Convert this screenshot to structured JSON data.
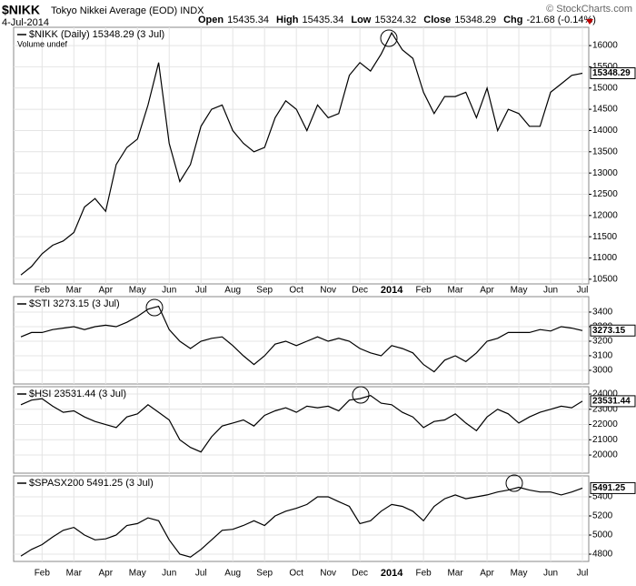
{
  "header": {
    "symbol": "$NIKK",
    "name": "Tokyo Nikkei Average (EOD) INDX",
    "copyright": "© StockCharts.com",
    "date": "4-Jul-2014",
    "quote": [
      {
        "label": "Open",
        "value": "15435.34"
      },
      {
        "label": "High",
        "value": "15435.34"
      },
      {
        "label": "Low",
        "value": "15324.32"
      },
      {
        "label": "Close",
        "value": "15348.29"
      },
      {
        "label": "Chg",
        "value": "-21.68 (-0.14%)"
      }
    ]
  },
  "chart_data": [
    {
      "type": "line",
      "label": "$NIKK (Daily) 15348.29 (3 Jul)",
      "note": "Volume undef",
      "color": "#000000",
      "grid": true,
      "categories": [
        null,
        null,
        "Feb",
        null,
        null,
        "Mar",
        null,
        null,
        "Apr",
        null,
        null,
        "May",
        null,
        null,
        "Jun",
        null,
        null,
        "Jul",
        null,
        null,
        "Aug",
        null,
        null,
        "Sep",
        null,
        null,
        "Oct",
        null,
        null,
        "Nov",
        null,
        null,
        "Dec",
        null,
        null,
        "2014",
        null,
        null,
        "Feb",
        null,
        null,
        "Mar",
        null,
        null,
        "Apr",
        null,
        null,
        "May",
        null,
        null,
        "Jun",
        null,
        null,
        "Jul"
      ],
      "values": [
        10600,
        10800,
        11100,
        11300,
        11400,
        11600,
        12200,
        12400,
        12100,
        13200,
        13600,
        13800,
        14600,
        15600,
        13700,
        12800,
        13200,
        14100,
        14500,
        14600,
        14000,
        13700,
        13500,
        13600,
        14300,
        14700,
        14500,
        14000,
        14600,
        14300,
        14400,
        15300,
        15600,
        15400,
        15800,
        16300,
        15900,
        15700,
        14900,
        14400,
        14800,
        14800,
        14900,
        14300,
        15000,
        14000,
        14500,
        14400,
        14100,
        14100,
        14900,
        15100,
        15300,
        15348.29
      ],
      "ylim": [
        10390,
        16430
      ],
      "yticks": [
        10500,
        11000,
        11500,
        12000,
        12500,
        13000,
        13500,
        14000,
        14500,
        15000,
        15500,
        16000
      ]
    },
    {
      "type": "line",
      "label": "$STI 3273.15 (3 Jul)",
      "color": "#000000",
      "grid": true,
      "values": [
        3230,
        3260,
        3260,
        3280,
        3290,
        3300,
        3280,
        3300,
        3310,
        3300,
        3330,
        3370,
        3420,
        3440,
        3280,
        3200,
        3150,
        3200,
        3220,
        3230,
        3170,
        3100,
        3040,
        3100,
        3180,
        3200,
        3170,
        3200,
        3230,
        3200,
        3220,
        3200,
        3150,
        3120,
        3100,
        3170,
        3150,
        3120,
        3040,
        2990,
        3070,
        3100,
        3060,
        3120,
        3200,
        3220,
        3260,
        3260,
        3260,
        3280,
        3270,
        3300,
        3290,
        3273.15
      ],
      "ylim": [
        2906,
        3506
      ],
      "yticks": [
        3000,
        3100,
        3200,
        3300,
        3400
      ]
    },
    {
      "type": "line",
      "label": "$HSI 23531.44 (3 Jul)",
      "color": "#000000",
      "grid": true,
      "values": [
        23300,
        23600,
        23700,
        23200,
        22800,
        22900,
        22500,
        22200,
        22000,
        21800,
        22500,
        22700,
        23300,
        22800,
        22300,
        21000,
        20500,
        20200,
        21200,
        21900,
        22100,
        22300,
        21900,
        22600,
        22900,
        23100,
        22800,
        23200,
        23100,
        23200,
        22900,
        23600,
        23700,
        23900,
        23400,
        23300,
        22800,
        22500,
        21800,
        22200,
        22300,
        22700,
        22100,
        21600,
        22500,
        23000,
        22700,
        22100,
        22500,
        22800,
        23000,
        23200,
        23100,
        23531.44
      ],
      "ylim": [
        18810,
        24480
      ],
      "yticks": [
        20000,
        21000,
        22000,
        23000,
        24000
      ]
    },
    {
      "type": "line",
      "label": "$SPASX200 5491.25 (3 Jul)",
      "color": "#000000",
      "grid": true,
      "categories": [
        null,
        null,
        "Feb",
        null,
        null,
        "Mar",
        null,
        null,
        "Apr",
        null,
        null,
        "May",
        null,
        null,
        "Jun",
        null,
        null,
        "Jul",
        null,
        null,
        "Aug",
        null,
        null,
        "Sep",
        null,
        null,
        "Oct",
        null,
        null,
        "Nov",
        null,
        null,
        "Dec",
        null,
        null,
        "2014",
        null,
        null,
        "Feb",
        null,
        null,
        "Mar",
        null,
        null,
        "Apr",
        null,
        null,
        "May",
        null,
        null,
        "Jun",
        null,
        null,
        "Jul"
      ],
      "values": [
        4780,
        4850,
        4900,
        4980,
        5050,
        5080,
        5000,
        4950,
        4960,
        5000,
        5100,
        5120,
        5180,
        5150,
        4950,
        4800,
        4770,
        4850,
        4950,
        5050,
        5060,
        5100,
        5150,
        5100,
        5200,
        5250,
        5280,
        5320,
        5400,
        5400,
        5350,
        5300,
        5120,
        5150,
        5250,
        5320,
        5300,
        5250,
        5150,
        5300,
        5380,
        5420,
        5380,
        5400,
        5420,
        5450,
        5470,
        5500,
        5470,
        5450,
        5450,
        5420,
        5450,
        5491.25
      ],
      "ylim": [
        4724,
        5619
      ],
      "yticks": [
        4800,
        5000,
        5200,
        5400
      ]
    }
  ]
}
